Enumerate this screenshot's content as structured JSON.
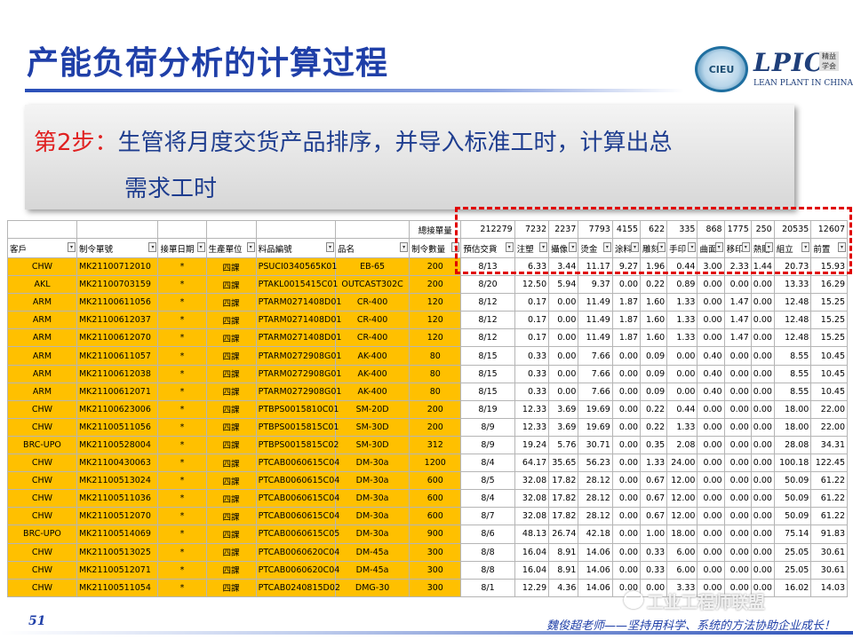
{
  "slide": {
    "title": "产能负荷分析的计算过程",
    "page_number": "51",
    "slogan": "魏俊超老师——坚持用科学、系统的方法协助企业成长！",
    "watermark": "工业工程师联盟"
  },
  "logos": {
    "ciiu_text": "CIEU",
    "lpic_mark": "LPIC",
    "lpic_tag": "精益 学会",
    "lpic_sub": "LEAN PLANT IN CHINA"
  },
  "callout": {
    "step": "第2步：",
    "line1": "生管将月度交货产品排序，并导入标准工时，计算出总",
    "line2": "需求工时"
  },
  "table": {
    "top_row": [
      "",
      "",
      "",
      "",
      "",
      "",
      "總接單量",
      "212279",
      "",
      "7232",
      "2237",
      "7793",
      "4155",
      "622",
      "335",
      "868",
      "1775",
      "250",
      "20535",
      "12607"
    ],
    "headers": [
      "客戶",
      "制令單號",
      "接單日期",
      "生產單位",
      "料品編號",
      "品名",
      "制令數量",
      "預估交貨",
      "注塑",
      "攝像",
      "烫金",
      "涂料",
      "雕刻",
      "手印",
      "曲面",
      "移印",
      "熱貼",
      "組立",
      "前置"
    ],
    "rows": [
      [
        "CHW",
        "MK21100712010",
        "*",
        "四課",
        "PSUCI0340565K01",
        "EB-65",
        "200",
        "8/13",
        "6.33",
        "3.44",
        "11.17",
        "9.27",
        "1.96",
        "0.44",
        "3.00",
        "2.33",
        "1.44",
        "20.73",
        "15.93"
      ],
      [
        "AKL",
        "MK21100703159",
        "*",
        "四課",
        "PTAKL0015415C01",
        "OUTCAST302C",
        "200",
        "8/20",
        "12.50",
        "5.94",
        "9.37",
        "0.00",
        "0.22",
        "0.89",
        "0.00",
        "0.00",
        "0.00",
        "13.33",
        "16.29"
      ],
      [
        "ARM",
        "MK21100611056",
        "*",
        "四課",
        "PTARM0271408D01",
        "CR-400",
        "120",
        "8/12",
        "0.17",
        "0.00",
        "11.49",
        "1.87",
        "1.60",
        "1.33",
        "0.00",
        "1.47",
        "0.00",
        "12.48",
        "15.25"
      ],
      [
        "ARM",
        "MK21100612037",
        "*",
        "四課",
        "PTARM0271408D01",
        "CR-400",
        "120",
        "8/12",
        "0.17",
        "0.00",
        "11.49",
        "1.87",
        "1.60",
        "1.33",
        "0.00",
        "1.47",
        "0.00",
        "12.48",
        "15.25"
      ],
      [
        "ARM",
        "MK21100612070",
        "*",
        "四課",
        "PTARM0271408D01",
        "CR-400",
        "120",
        "8/12",
        "0.17",
        "0.00",
        "11.49",
        "1.87",
        "1.60",
        "1.33",
        "0.00",
        "1.47",
        "0.00",
        "12.48",
        "15.25"
      ],
      [
        "ARM",
        "MK21100611057",
        "*",
        "四課",
        "PTARM0272908G01",
        "AK-400",
        "80",
        "8/15",
        "0.33",
        "0.00",
        "7.66",
        "0.00",
        "0.09",
        "0.00",
        "0.40",
        "0.00",
        "0.00",
        "8.55",
        "10.45"
      ],
      [
        "ARM",
        "MK21100612038",
        "*",
        "四課",
        "PTARM0272908G01",
        "AK-400",
        "80",
        "8/15",
        "0.33",
        "0.00",
        "7.66",
        "0.00",
        "0.09",
        "0.00",
        "0.40",
        "0.00",
        "0.00",
        "8.55",
        "10.45"
      ],
      [
        "ARM",
        "MK21100612071",
        "*",
        "四課",
        "PTARM0272908G01",
        "AK-400",
        "80",
        "8/15",
        "0.33",
        "0.00",
        "7.66",
        "0.00",
        "0.09",
        "0.00",
        "0.40",
        "0.00",
        "0.00",
        "8.55",
        "10.45"
      ],
      [
        "CHW",
        "MK21100623006",
        "*",
        "四課",
        "PTBPS0015810C01",
        "SM-20D",
        "200",
        "8/19",
        "12.33",
        "3.69",
        "19.69",
        "0.00",
        "0.22",
        "0.44",
        "0.00",
        "0.00",
        "0.00",
        "18.00",
        "22.00"
      ],
      [
        "CHW",
        "MK21100511056",
        "*",
        "四課",
        "PTBPS0015815C01",
        "SM-30D",
        "200",
        "8/9",
        "12.33",
        "3.69",
        "19.69",
        "0.00",
        "0.22",
        "1.33",
        "0.00",
        "0.00",
        "0.00",
        "18.00",
        "22.00"
      ],
      [
        "BRC-UPO",
        "MK21100528004",
        "*",
        "四課",
        "PTBPS0015815C02",
        "SM-30D",
        "312",
        "8/9",
        "19.24",
        "5.76",
        "30.71",
        "0.00",
        "0.35",
        "2.08",
        "0.00",
        "0.00",
        "0.00",
        "28.08",
        "34.31"
      ],
      [
        "CHW",
        "MK21100430063",
        "*",
        "四課",
        "PTCAB0060615C04",
        "DM-30a",
        "1200",
        "8/4",
        "64.17",
        "35.65",
        "56.23",
        "0.00",
        "1.33",
        "24.00",
        "0.00",
        "0.00",
        "0.00",
        "100.18",
        "122.45"
      ],
      [
        "CHW",
        "MK21100513024",
        "*",
        "四課",
        "PTCAB0060615C04",
        "DM-30a",
        "600",
        "8/5",
        "32.08",
        "17.82",
        "28.12",
        "0.00",
        "0.67",
        "12.00",
        "0.00",
        "0.00",
        "0.00",
        "50.09",
        "61.22"
      ],
      [
        "CHW",
        "MK21100511036",
        "*",
        "四課",
        "PTCAB0060615C04",
        "DM-30a",
        "600",
        "8/4",
        "32.08",
        "17.82",
        "28.12",
        "0.00",
        "0.67",
        "12.00",
        "0.00",
        "0.00",
        "0.00",
        "50.09",
        "61.22"
      ],
      [
        "CHW",
        "MK21100512070",
        "*",
        "四課",
        "PTCAB0060615C04",
        "DM-30a",
        "600",
        "8/7",
        "32.08",
        "17.82",
        "28.12",
        "0.00",
        "0.67",
        "12.00",
        "0.00",
        "0.00",
        "0.00",
        "50.09",
        "61.22"
      ],
      [
        "BRC-UPO",
        "MK21100514069",
        "*",
        "四課",
        "PTCAB0060615C05",
        "DM-30a",
        "900",
        "8/6",
        "48.13",
        "26.74",
        "42.18",
        "0.00",
        "1.00",
        "18.00",
        "0.00",
        "0.00",
        "0.00",
        "75.14",
        "91.83"
      ],
      [
        "CHW",
        "MK21100513025",
        "*",
        "四課",
        "PTCAB0060620C04",
        "DM-45a",
        "300",
        "8/8",
        "16.04",
        "8.91",
        "14.06",
        "0.00",
        "0.33",
        "6.00",
        "0.00",
        "0.00",
        "0.00",
        "25.05",
        "30.61"
      ],
      [
        "CHW",
        "MK21100512071",
        "*",
        "四課",
        "PTCAB0060620C04",
        "DM-45a",
        "300",
        "8/8",
        "16.04",
        "8.91",
        "14.06",
        "0.00",
        "0.33",
        "6.00",
        "0.00",
        "0.00",
        "0.00",
        "25.05",
        "30.61"
      ],
      [
        "CHW",
        "MK21100511054",
        "*",
        "四課",
        "PTCAB0240815D02",
        "DMG-30",
        "300",
        "8/1",
        "12.29",
        "4.36",
        "14.06",
        "0.00",
        "0.00",
        "3.33",
        "0.00",
        "0.00",
        "0.00",
        "16.02",
        "14.03"
      ]
    ]
  }
}
